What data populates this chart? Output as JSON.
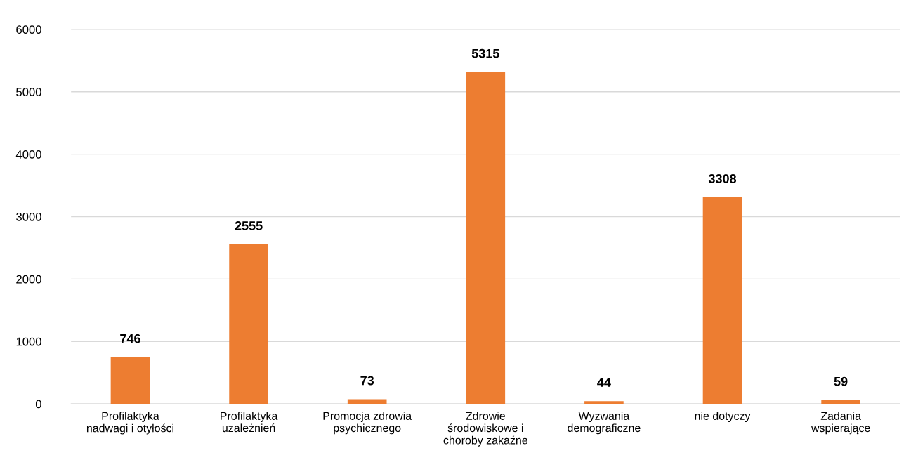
{
  "chart_data": {
    "type": "bar",
    "categories": [
      "Profilaktyka\nnadwagi i otyłości",
      "Profilaktyka\nuzależnień",
      "Promocja zdrowia\npsychicznego",
      "Zdrowie\nśrodowiskowe i\nchoroby zakaźne",
      "Wyzwania\ndemograficzne",
      "nie dotyczy",
      "Zadania\nwspierające"
    ],
    "values": [
      746,
      2555,
      73,
      5315,
      44,
      3308,
      59
    ],
    "color": "#ed7d31",
    "ylim": [
      0,
      6000
    ],
    "yticks": [
      0,
      1000,
      2000,
      3000,
      4000,
      5000,
      6000
    ],
    "grid": "y",
    "data_labels": true
  }
}
